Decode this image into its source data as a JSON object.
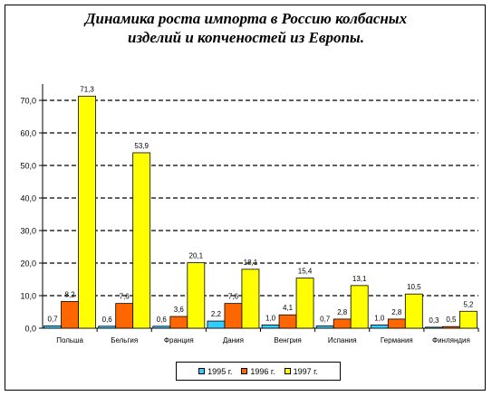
{
  "chart_data": {
    "type": "bar",
    "title_line1": "Динамика роста импорта в Россию колбасных",
    "title_line2": "изделий и копченостей из Европы.",
    "categories": [
      "Польша",
      "Бельгия",
      "Франция",
      "Дания",
      "Венгрия",
      "Испания",
      "Германия",
      "Финляндия"
    ],
    "series": [
      {
        "name": "1995 г.",
        "color": "#33CCFF",
        "values": [
          0.7,
          0.6,
          0.6,
          2.2,
          1.0,
          0.7,
          1.0,
          0.3
        ],
        "labels": [
          "0,7",
          "0,6",
          "0,6",
          "2,2",
          "1,0",
          "0,7",
          "1,0",
          "0,3"
        ]
      },
      {
        "name": "1996 г.",
        "color": "#FF6600",
        "values": [
          8.2,
          7.6,
          3.6,
          7.6,
          4.1,
          2.8,
          2.8,
          0.5
        ],
        "labels": [
          "8,2",
          "7,6",
          "3,6",
          "7,6",
          "4,1",
          "2,8",
          "2,8",
          "0,5"
        ]
      },
      {
        "name": "1997 г.",
        "color": "#FFFF00",
        "values": [
          71.3,
          53.9,
          20.1,
          18.1,
          15.4,
          13.1,
          10.5,
          5.2
        ],
        "labels": [
          "71,3",
          "53,9",
          "20,1",
          "18,1",
          "15,4",
          "13,1",
          "10,5",
          "5,2"
        ]
      }
    ],
    "yticks": [
      0,
      10,
      20,
      30,
      40,
      50,
      60,
      70
    ],
    "ytick_labels": [
      "0,0",
      "10,0",
      "20,0",
      "30,0",
      "40,0",
      "50,0",
      "60,0",
      "70,0"
    ],
    "ylim": [
      0,
      75
    ],
    "grid": "dashed horizontal",
    "legend_position": "bottom"
  }
}
